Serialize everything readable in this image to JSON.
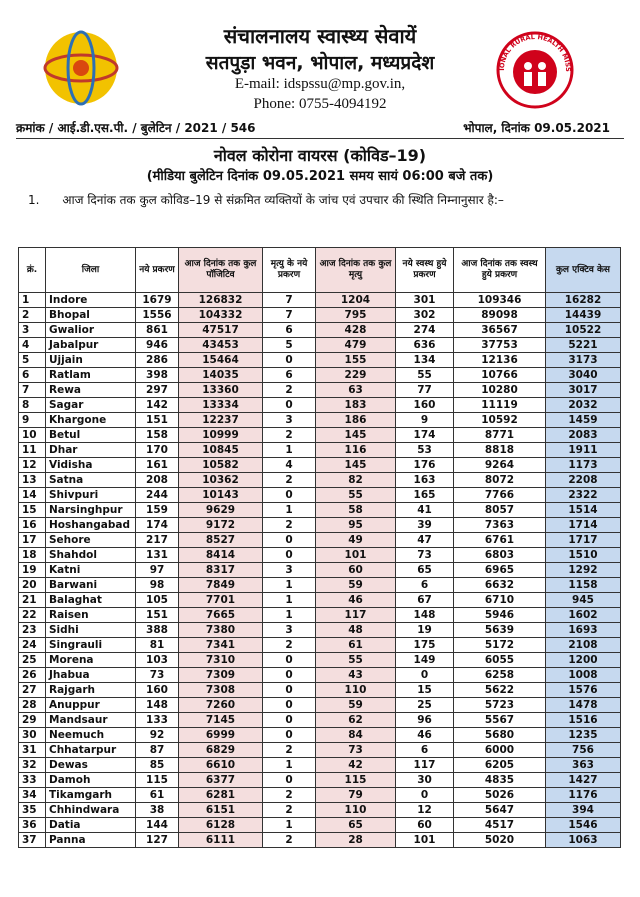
{
  "header": {
    "title": "संचालनालय स्वास्थ्य सेवायें",
    "address": "सतपुड़ा भवन, भोपाल, मध्यप्रदेश",
    "email": "E-mail: idspssu@mp.gov.in,",
    "phone": "Phone: 0755-4094192",
    "reference": "क्रमांक / आई.डी.एस.पी. / बुलेटिन / 2021 / 546",
    "date": "भोपाल, दिनांक 09.05.2021"
  },
  "heading": "नोवल कोरोना वायरस (कोविड–19)",
  "subheading": "(मीडिया बुलेटिन दिनांक 09.05.2021 समय सायं 06:00 बजे तक)",
  "paragraph": "1.      आज दिनांक तक कुल कोविड–19 से संक्रमित व्यक्तियों के जांच एवं उपचार की स्थिति निम्नानुसार है:–",
  "logo_text": "NATIONAL RURAL HEALTH MISSION",
  "table": {
    "columns": [
      "क्रं.",
      "जिला",
      "नये प्रकरण",
      "आज दिनांक तक कुल पॉजिटिव",
      "मृत्यु के नये प्रकरण",
      "आज दिनांक तक कुल मृत्यु",
      "नये स्वस्थ हुये प्रकरण",
      "आज दिनांक तक स्वस्थ हुये प्रकरण",
      "कुल एक्टिव केस"
    ],
    "rows": [
      [
        1,
        "Indore",
        1679,
        126832,
        7,
        1204,
        301,
        109346,
        16282
      ],
      [
        2,
        "Bhopal",
        1556,
        104332,
        7,
        795,
        302,
        89098,
        14439
      ],
      [
        3,
        "Gwalior",
        861,
        47517,
        6,
        428,
        274,
        36567,
        10522
      ],
      [
        4,
        "Jabalpur",
        946,
        43453,
        5,
        479,
        636,
        37753,
        5221
      ],
      [
        5,
        "Ujjain",
        286,
        15464,
        0,
        155,
        134,
        12136,
        3173
      ],
      [
        6,
        "Ratlam",
        398,
        14035,
        6,
        229,
        55,
        10766,
        3040
      ],
      [
        7,
        "Rewa",
        297,
        13360,
        2,
        63,
        77,
        10280,
        3017
      ],
      [
        8,
        "Sagar",
        142,
        13334,
        0,
        183,
        160,
        11119,
        2032
      ],
      [
        9,
        "Khargone",
        151,
        12237,
        3,
        186,
        9,
        10592,
        1459
      ],
      [
        10,
        "Betul",
        158,
        10999,
        2,
        145,
        174,
        8771,
        2083
      ],
      [
        11,
        "Dhar",
        170,
        10845,
        1,
        116,
        53,
        8818,
        1911
      ],
      [
        12,
        "Vidisha",
        161,
        10582,
        4,
        145,
        176,
        9264,
        1173
      ],
      [
        13,
        "Satna",
        208,
        10362,
        2,
        82,
        163,
        8072,
        2208
      ],
      [
        14,
        "Shivpuri",
        244,
        10143,
        0,
        55,
        165,
        7766,
        2322
      ],
      [
        15,
        "Narsinghpur",
        159,
        9629,
        1,
        58,
        41,
        8057,
        1514
      ],
      [
        16,
        "Hoshangabad",
        174,
        9172,
        2,
        95,
        39,
        7363,
        1714
      ],
      [
        17,
        "Sehore",
        217,
        8527,
        0,
        49,
        47,
        6761,
        1717
      ],
      [
        18,
        "Shahdol",
        131,
        8414,
        0,
        101,
        73,
        6803,
        1510
      ],
      [
        19,
        "Katni",
        97,
        8317,
        3,
        60,
        65,
        6965,
        1292
      ],
      [
        20,
        "Barwani",
        98,
        7849,
        1,
        59,
        6,
        6632,
        1158
      ],
      [
        21,
        "Balaghat",
        105,
        7701,
        1,
        46,
        67,
        6710,
        945
      ],
      [
        22,
        "Raisen",
        151,
        7665,
        1,
        117,
        148,
        5946,
        1602
      ],
      [
        23,
        "Sidhi",
        388,
        7380,
        3,
        48,
        19,
        5639,
        1693
      ],
      [
        24,
        "Singrauli",
        81,
        7341,
        2,
        61,
        175,
        5172,
        2108
      ],
      [
        25,
        "Morena",
        103,
        7310,
        0,
        55,
        149,
        6055,
        1200
      ],
      [
        26,
        "Jhabua",
        73,
        7309,
        0,
        43,
        0,
        6258,
        1008
      ],
      [
        27,
        "Rajgarh",
        160,
        7308,
        0,
        110,
        15,
        5622,
        1576
      ],
      [
        28,
        "Anuppur",
        148,
        7260,
        0,
        59,
        25,
        5723,
        1478
      ],
      [
        29,
        "Mandsaur",
        133,
        7145,
        0,
        62,
        96,
        5567,
        1516
      ],
      [
        30,
        "Neemuch",
        92,
        6999,
        0,
        84,
        46,
        5680,
        1235
      ],
      [
        31,
        "Chhatarpur",
        87,
        6829,
        2,
        73,
        6,
        6000,
        756
      ],
      [
        32,
        "Dewas",
        85,
        6610,
        1,
        42,
        117,
        6205,
        363
      ],
      [
        33,
        "Damoh",
        115,
        6377,
        0,
        115,
        30,
        4835,
        1427
      ],
      [
        34,
        "Tikamgarh",
        61,
        6281,
        2,
        79,
        0,
        5026,
        1176
      ],
      [
        35,
        "Chhindwara",
        38,
        6151,
        2,
        110,
        12,
        5647,
        394
      ],
      [
        36,
        "Datia",
        144,
        6128,
        1,
        65,
        60,
        4517,
        1546
      ],
      [
        37,
        "Panna",
        127,
        6111,
        2,
        28,
        101,
        5020,
        1063
      ]
    ]
  }
}
